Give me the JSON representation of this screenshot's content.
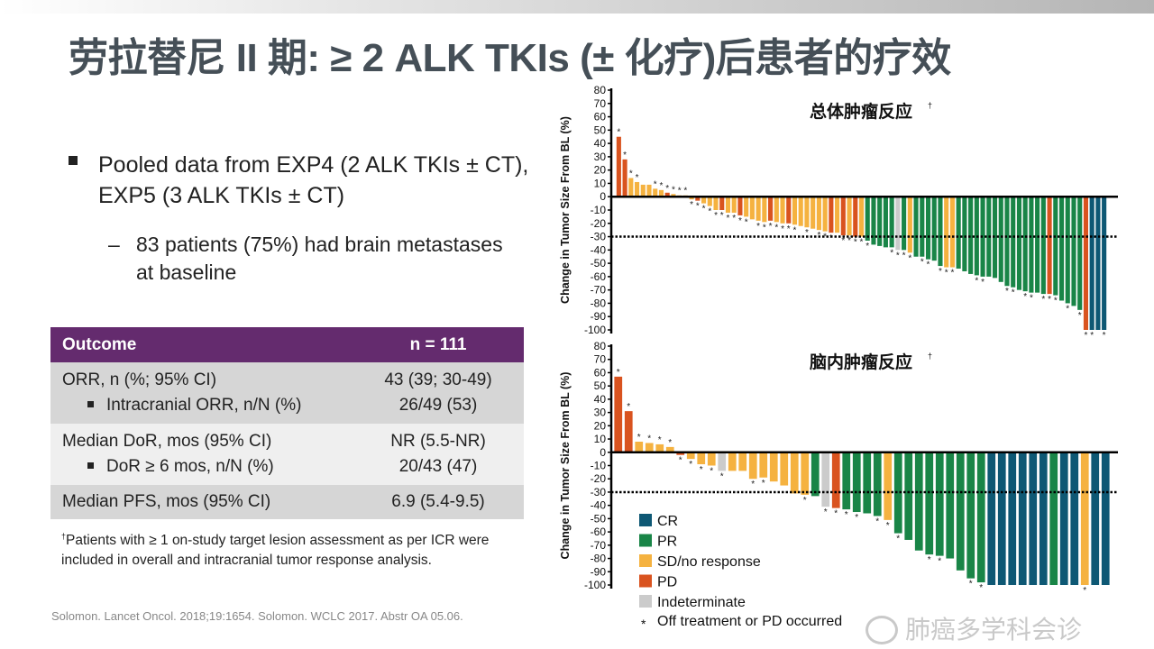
{
  "title": "劳拉替尼 II 期: ≥ 2 ALK TKIs (± 化疗)后患者的疗效",
  "bullet": "Pooled data from EXP4 (2 ALK TKIs ± CT), EXP5 (3 ALK TKIs ± CT)",
  "sub_dash": "–",
  "sub_bullet": "83 patients (75%) had brain metastases at baseline",
  "table": {
    "headers": [
      "Outcome",
      "n = 111"
    ],
    "rows": [
      {
        "label": "ORR, n (%; 95% CI)",
        "value": "43 (39; 30-49)"
      },
      {
        "label": "Intracranial ORR, n/N (%)",
        "value": "26/49 (53)"
      },
      {
        "label": "Median DoR, mos (95% CI)",
        "value": "NR (5.5-NR)"
      },
      {
        "label": "DoR ≥ 6 mos, n/N (%)",
        "value": "20/43 (47)"
      },
      {
        "label": "Median PFS, mos (95% CI)",
        "value": "6.9 (5.4-9.5)"
      }
    ]
  },
  "footnote_mark": "†",
  "footnote": "Patients with ≥ 1 on-study target lesion assessment as per ICR were included in overall and intracranial tumor response analysis.",
  "citation": "Solomon.  Lancet Oncol. 2018;19:1654.  Solomon.  WCLC 2017. Abstr OA 05.06.",
  "watermark": "肺癌多学科会诊",
  "colors": {
    "CR": "#0e5874",
    "PR": "#198547",
    "SD": "#f5b240",
    "PD": "#d9531f",
    "IND": "#cbcbcb"
  },
  "legend": [
    {
      "key": "CR",
      "label": "CR"
    },
    {
      "key": "PR",
      "label": "PR"
    },
    {
      "key": "SD",
      "label": "SD/no response"
    },
    {
      "key": "PD",
      "label": "PD"
    },
    {
      "key": "IND",
      "label": "Indeterminate"
    }
  ],
  "legend_asterisk": "Off treatment or PD occurred",
  "chart_data": [
    {
      "type": "bar",
      "title": "总体肿瘤反应",
      "title_mark": "†",
      "ylabel": "Change in Tumor Size From BL (%)",
      "ylim": [
        -100,
        80
      ],
      "yticks": [
        80,
        70,
        60,
        50,
        40,
        30,
        20,
        10,
        0,
        -10,
        -20,
        -30,
        -40,
        -50,
        -60,
        -70,
        -80,
        -90,
        -100
      ],
      "reference_line": -30,
      "bars": [
        [
          "PD",
          45,
          1
        ],
        [
          "PD",
          28,
          1
        ],
        [
          "SD",
          14,
          1
        ],
        [
          "SD",
          11,
          1
        ],
        [
          "SD",
          9,
          0
        ],
        [
          "SD",
          9,
          0
        ],
        [
          "SD",
          6,
          1
        ],
        [
          "SD",
          5,
          1
        ],
        [
          "PD",
          3,
          1
        ],
        [
          "SD",
          2,
          1
        ],
        [
          "SD",
          1,
          1
        ],
        [
          "SD",
          1,
          1
        ],
        [
          "SD",
          -2,
          1
        ],
        [
          "PD",
          -3,
          1
        ],
        [
          "SD",
          -5,
          1
        ],
        [
          "SD",
          -7,
          1
        ],
        [
          "SD",
          -10,
          1
        ],
        [
          "PD",
          -10,
          1
        ],
        [
          "SD",
          -12,
          1
        ],
        [
          "SD",
          -12,
          1
        ],
        [
          "PD",
          -14,
          1
        ],
        [
          "SD",
          -15,
          1
        ],
        [
          "SD",
          -17,
          0
        ],
        [
          "SD",
          -18,
          1
        ],
        [
          "SD",
          -19,
          1
        ],
        [
          "PD",
          -18,
          1
        ],
        [
          "SD",
          -19,
          1
        ],
        [
          "SD",
          -20,
          1
        ],
        [
          "PD",
          -20,
          1
        ],
        [
          "SD",
          -21,
          1
        ],
        [
          "SD",
          -22,
          0
        ],
        [
          "SD",
          -23,
          1
        ],
        [
          "SD",
          -24,
          0
        ],
        [
          "SD",
          -25,
          1
        ],
        [
          "SD",
          -26,
          1
        ],
        [
          "PD",
          -27,
          1
        ],
        [
          "SD",
          -27,
          0
        ],
        [
          "PD",
          -29,
          1
        ],
        [
          "SD",
          -29,
          1
        ],
        [
          "PD",
          -30,
          1
        ],
        [
          "SD",
          -30,
          1
        ],
        [
          "PR",
          -33,
          1
        ],
        [
          "PR",
          -36,
          0
        ],
        [
          "PR",
          -37,
          0
        ],
        [
          "PR",
          -38,
          0
        ],
        [
          "PR",
          -38,
          1
        ],
        [
          "IND",
          -40,
          1
        ],
        [
          "PR",
          -40,
          1
        ],
        [
          "SD",
          -42,
          1
        ],
        [
          "PR",
          -45,
          0
        ],
        [
          "PR",
          -45,
          1
        ],
        [
          "PR",
          -47,
          1
        ],
        [
          "PR",
          -48,
          0
        ],
        [
          "PR",
          -52,
          1
        ],
        [
          "SD",
          -53,
          1
        ],
        [
          "SD",
          -53,
          1
        ],
        [
          "PR",
          -54,
          0
        ],
        [
          "PR",
          -56,
          0
        ],
        [
          "PR",
          -58,
          0
        ],
        [
          "PR",
          -59,
          1
        ],
        [
          "PR",
          -60,
          1
        ],
        [
          "PR",
          -60,
          0
        ],
        [
          "PR",
          -61,
          0
        ],
        [
          "PR",
          -64,
          0
        ],
        [
          "PR",
          -67,
          1
        ],
        [
          "PR",
          -68,
          1
        ],
        [
          "PR",
          -70,
          0
        ],
        [
          "PR",
          -71,
          1
        ],
        [
          "PR",
          -72,
          1
        ],
        [
          "PR",
          -72,
          0
        ],
        [
          "PR",
          -73,
          1
        ],
        [
          "PD",
          -73,
          1
        ],
        [
          "PR",
          -74,
          1
        ],
        [
          "PR",
          -78,
          0
        ],
        [
          "PR",
          -80,
          1
        ],
        [
          "PR",
          -82,
          0
        ],
        [
          "PR",
          -85,
          1
        ],
        [
          "PD",
          -100,
          1
        ],
        [
          "CR",
          -100,
          1
        ],
        [
          "CR",
          -100,
          0
        ],
        [
          "CR",
          -100,
          1
        ]
      ]
    },
    {
      "type": "bar",
      "title": "脑内肿瘤反应",
      "title_mark": "†",
      "ylabel": "Change in Tumor Size From BL (%)",
      "ylim": [
        -100,
        80
      ],
      "yticks": [
        80,
        70,
        60,
        50,
        40,
        30,
        20,
        10,
        0,
        -10,
        -20,
        -30,
        -40,
        -50,
        -60,
        -70,
        -80,
        -90,
        -100
      ],
      "reference_line": -30,
      "bars": [
        [
          "PD",
          57,
          1
        ],
        [
          "PD",
          31,
          1
        ],
        [
          "SD",
          8,
          1
        ],
        [
          "SD",
          7,
          1
        ],
        [
          "SD",
          6,
          1
        ],
        [
          "SD",
          4,
          1
        ],
        [
          "PD",
          -2,
          1
        ],
        [
          "SD",
          -5,
          1
        ],
        [
          "SD",
          -9,
          1
        ],
        [
          "SD",
          -10,
          1
        ],
        [
          "IND",
          -14,
          1
        ],
        [
          "SD",
          -14,
          0
        ],
        [
          "SD",
          -14,
          0
        ],
        [
          "SD",
          -20,
          1
        ],
        [
          "SD",
          -19,
          1
        ],
        [
          "SD",
          -22,
          0
        ],
        [
          "SD",
          -25,
          0
        ],
        [
          "SD",
          -31,
          0
        ],
        [
          "SD",
          -32,
          1
        ],
        [
          "PR",
          -33,
          0
        ],
        [
          "IND",
          -41,
          1
        ],
        [
          "PD",
          -42,
          1
        ],
        [
          "PR",
          -43,
          1
        ],
        [
          "PR",
          -45,
          1
        ],
        [
          "PR",
          -46,
          0
        ],
        [
          "PR",
          -48,
          1
        ],
        [
          "SD",
          -51,
          1
        ],
        [
          "PR",
          -61,
          1
        ],
        [
          "PR",
          -66,
          0
        ],
        [
          "PR",
          -74,
          0
        ],
        [
          "PR",
          -77,
          1
        ],
        [
          "PR",
          -78,
          1
        ],
        [
          "PR",
          -80,
          0
        ],
        [
          "PR",
          -89,
          0
        ],
        [
          "PR",
          -95,
          1
        ],
        [
          "PR",
          -98,
          1
        ],
        [
          "CR",
          -100,
          0
        ],
        [
          "CR",
          -100,
          0
        ],
        [
          "CR",
          -100,
          0
        ],
        [
          "CR",
          -100,
          0
        ],
        [
          "CR",
          -100,
          0
        ],
        [
          "CR",
          -100,
          0
        ],
        [
          "PR",
          -100,
          0
        ],
        [
          "CR",
          -100,
          0
        ],
        [
          "CR",
          -100,
          0
        ],
        [
          "SD",
          -100,
          1
        ],
        [
          "CR",
          -100,
          0
        ],
        [
          "CR",
          -100,
          0
        ]
      ]
    }
  ]
}
